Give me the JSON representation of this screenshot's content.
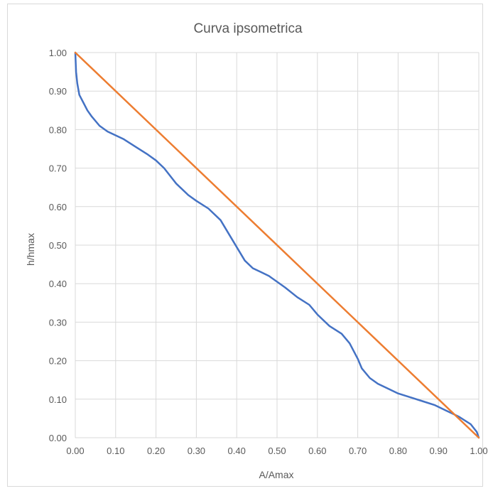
{
  "chart_data": {
    "type": "line",
    "title": "Curva ipsometrica",
    "xlabel": "A/Amax",
    "ylabel": "h/hmax",
    "xlim": [
      0,
      1
    ],
    "ylim": [
      0,
      1
    ],
    "x_ticks": [
      "0.00",
      "0.10",
      "0.20",
      "0.30",
      "0.40",
      "0.50",
      "0.60",
      "0.70",
      "0.80",
      "0.90",
      "1.00"
    ],
    "y_ticks": [
      "0.00",
      "0.10",
      "0.20",
      "0.30",
      "0.40",
      "0.50",
      "0.60",
      "0.70",
      "0.80",
      "0.90",
      "1.00"
    ],
    "grid": true,
    "legend": "none",
    "series": [
      {
        "color": "#4472c4",
        "x": [
          0.0,
          0.002,
          0.005,
          0.01,
          0.02,
          0.03,
          0.04,
          0.06,
          0.08,
          0.1,
          0.12,
          0.15,
          0.18,
          0.2,
          0.22,
          0.25,
          0.28,
          0.3,
          0.33,
          0.36,
          0.38,
          0.4,
          0.42,
          0.44,
          0.46,
          0.48,
          0.5,
          0.52,
          0.55,
          0.58,
          0.6,
          0.63,
          0.66,
          0.68,
          0.7,
          0.71,
          0.73,
          0.75,
          0.78,
          0.8,
          0.83,
          0.86,
          0.89,
          0.92,
          0.95,
          0.98,
          0.995,
          1.0
        ],
        "y": [
          1.0,
          0.95,
          0.92,
          0.89,
          0.87,
          0.85,
          0.835,
          0.81,
          0.795,
          0.785,
          0.775,
          0.755,
          0.735,
          0.72,
          0.7,
          0.66,
          0.63,
          0.615,
          0.595,
          0.565,
          0.53,
          0.495,
          0.46,
          0.44,
          0.43,
          0.42,
          0.405,
          0.39,
          0.365,
          0.345,
          0.32,
          0.29,
          0.27,
          0.245,
          0.205,
          0.18,
          0.155,
          0.14,
          0.125,
          0.115,
          0.105,
          0.095,
          0.085,
          0.07,
          0.055,
          0.035,
          0.015,
          0.0
        ]
      },
      {
        "color": "#ed7d31",
        "x": [
          0.0,
          1.0
        ],
        "y": [
          1.0,
          0.0
        ]
      }
    ]
  }
}
